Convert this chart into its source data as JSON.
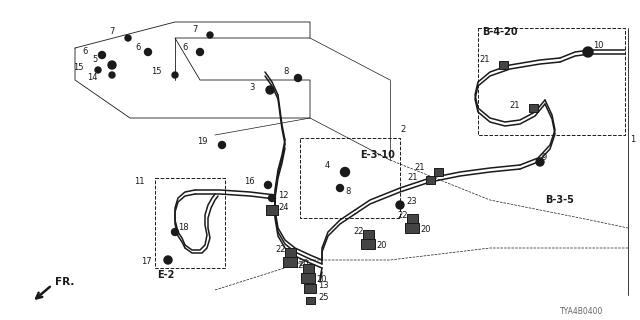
{
  "bg_color": "#ffffff",
  "line_color": "#1a1a1a",
  "footer_text": "TYA4B0400",
  "fr_label": "FR.",
  "fig_w": 6.4,
  "fig_h": 3.2,
  "dpi": 100
}
